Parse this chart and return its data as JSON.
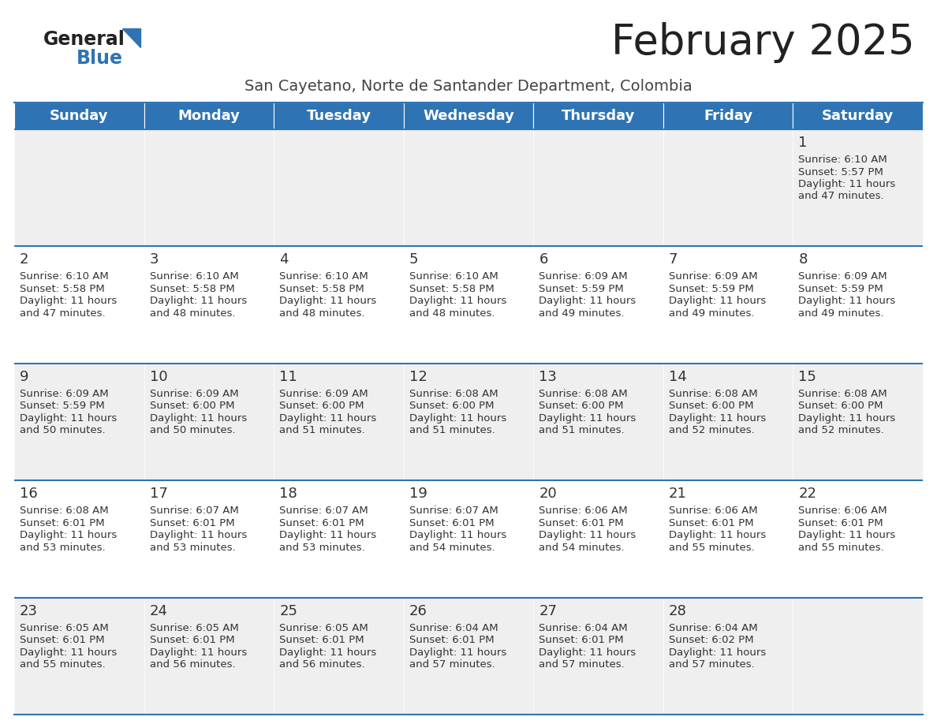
{
  "title": "February 2025",
  "subtitle": "San Cayetano, Norte de Santander Department, Colombia",
  "header_bg": "#2E74B5",
  "header_text": "#FFFFFF",
  "row_bg_light": "#EFEFEF",
  "row_bg_white": "#FFFFFF",
  "cell_text": "#333333",
  "day_number_color": "#333333",
  "separator_color": "#2E74B5",
  "days_of_week": [
    "Sunday",
    "Monday",
    "Tuesday",
    "Wednesday",
    "Thursday",
    "Friday",
    "Saturday"
  ],
  "calendar_data": [
    [
      null,
      null,
      null,
      null,
      null,
      null,
      {
        "day": 1,
        "sunrise": "6:10 AM",
        "sunset": "5:57 PM",
        "daylight": "11 hours\nand 47 minutes."
      }
    ],
    [
      {
        "day": 2,
        "sunrise": "6:10 AM",
        "sunset": "5:58 PM",
        "daylight": "11 hours\nand 47 minutes."
      },
      {
        "day": 3,
        "sunrise": "6:10 AM",
        "sunset": "5:58 PM",
        "daylight": "11 hours\nand 48 minutes."
      },
      {
        "day": 4,
        "sunrise": "6:10 AM",
        "sunset": "5:58 PM",
        "daylight": "11 hours\nand 48 minutes."
      },
      {
        "day": 5,
        "sunrise": "6:10 AM",
        "sunset": "5:58 PM",
        "daylight": "11 hours\nand 48 minutes."
      },
      {
        "day": 6,
        "sunrise": "6:09 AM",
        "sunset": "5:59 PM",
        "daylight": "11 hours\nand 49 minutes."
      },
      {
        "day": 7,
        "sunrise": "6:09 AM",
        "sunset": "5:59 PM",
        "daylight": "11 hours\nand 49 minutes."
      },
      {
        "day": 8,
        "sunrise": "6:09 AM",
        "sunset": "5:59 PM",
        "daylight": "11 hours\nand 49 minutes."
      }
    ],
    [
      {
        "day": 9,
        "sunrise": "6:09 AM",
        "sunset": "5:59 PM",
        "daylight": "11 hours\nand 50 minutes."
      },
      {
        "day": 10,
        "sunrise": "6:09 AM",
        "sunset": "6:00 PM",
        "daylight": "11 hours\nand 50 minutes."
      },
      {
        "day": 11,
        "sunrise": "6:09 AM",
        "sunset": "6:00 PM",
        "daylight": "11 hours\nand 51 minutes."
      },
      {
        "day": 12,
        "sunrise": "6:08 AM",
        "sunset": "6:00 PM",
        "daylight": "11 hours\nand 51 minutes."
      },
      {
        "day": 13,
        "sunrise": "6:08 AM",
        "sunset": "6:00 PM",
        "daylight": "11 hours\nand 51 minutes."
      },
      {
        "day": 14,
        "sunrise": "6:08 AM",
        "sunset": "6:00 PM",
        "daylight": "11 hours\nand 52 minutes."
      },
      {
        "day": 15,
        "sunrise": "6:08 AM",
        "sunset": "6:00 PM",
        "daylight": "11 hours\nand 52 minutes."
      }
    ],
    [
      {
        "day": 16,
        "sunrise": "6:08 AM",
        "sunset": "6:01 PM",
        "daylight": "11 hours\nand 53 minutes."
      },
      {
        "day": 17,
        "sunrise": "6:07 AM",
        "sunset": "6:01 PM",
        "daylight": "11 hours\nand 53 minutes."
      },
      {
        "day": 18,
        "sunrise": "6:07 AM",
        "sunset": "6:01 PM",
        "daylight": "11 hours\nand 53 minutes."
      },
      {
        "day": 19,
        "sunrise": "6:07 AM",
        "sunset": "6:01 PM",
        "daylight": "11 hours\nand 54 minutes."
      },
      {
        "day": 20,
        "sunrise": "6:06 AM",
        "sunset": "6:01 PM",
        "daylight": "11 hours\nand 54 minutes."
      },
      {
        "day": 21,
        "sunrise": "6:06 AM",
        "sunset": "6:01 PM",
        "daylight": "11 hours\nand 55 minutes."
      },
      {
        "day": 22,
        "sunrise": "6:06 AM",
        "sunset": "6:01 PM",
        "daylight": "11 hours\nand 55 minutes."
      }
    ],
    [
      {
        "day": 23,
        "sunrise": "6:05 AM",
        "sunset": "6:01 PM",
        "daylight": "11 hours\nand 55 minutes."
      },
      {
        "day": 24,
        "sunrise": "6:05 AM",
        "sunset": "6:01 PM",
        "daylight": "11 hours\nand 56 minutes."
      },
      {
        "day": 25,
        "sunrise": "6:05 AM",
        "sunset": "6:01 PM",
        "daylight": "11 hours\nand 56 minutes."
      },
      {
        "day": 26,
        "sunrise": "6:04 AM",
        "sunset": "6:01 PM",
        "daylight": "11 hours\nand 57 minutes."
      },
      {
        "day": 27,
        "sunrise": "6:04 AM",
        "sunset": "6:01 PM",
        "daylight": "11 hours\nand 57 minutes."
      },
      {
        "day": 28,
        "sunrise": "6:04 AM",
        "sunset": "6:02 PM",
        "daylight": "11 hours\nand 57 minutes."
      },
      null
    ]
  ],
  "title_fontsize": 38,
  "subtitle_fontsize": 14,
  "header_fontsize": 13,
  "day_num_fontsize": 13,
  "cell_text_fontsize": 9.5,
  "logo_general_fontsize": 17,
  "logo_blue_fontsize": 17
}
